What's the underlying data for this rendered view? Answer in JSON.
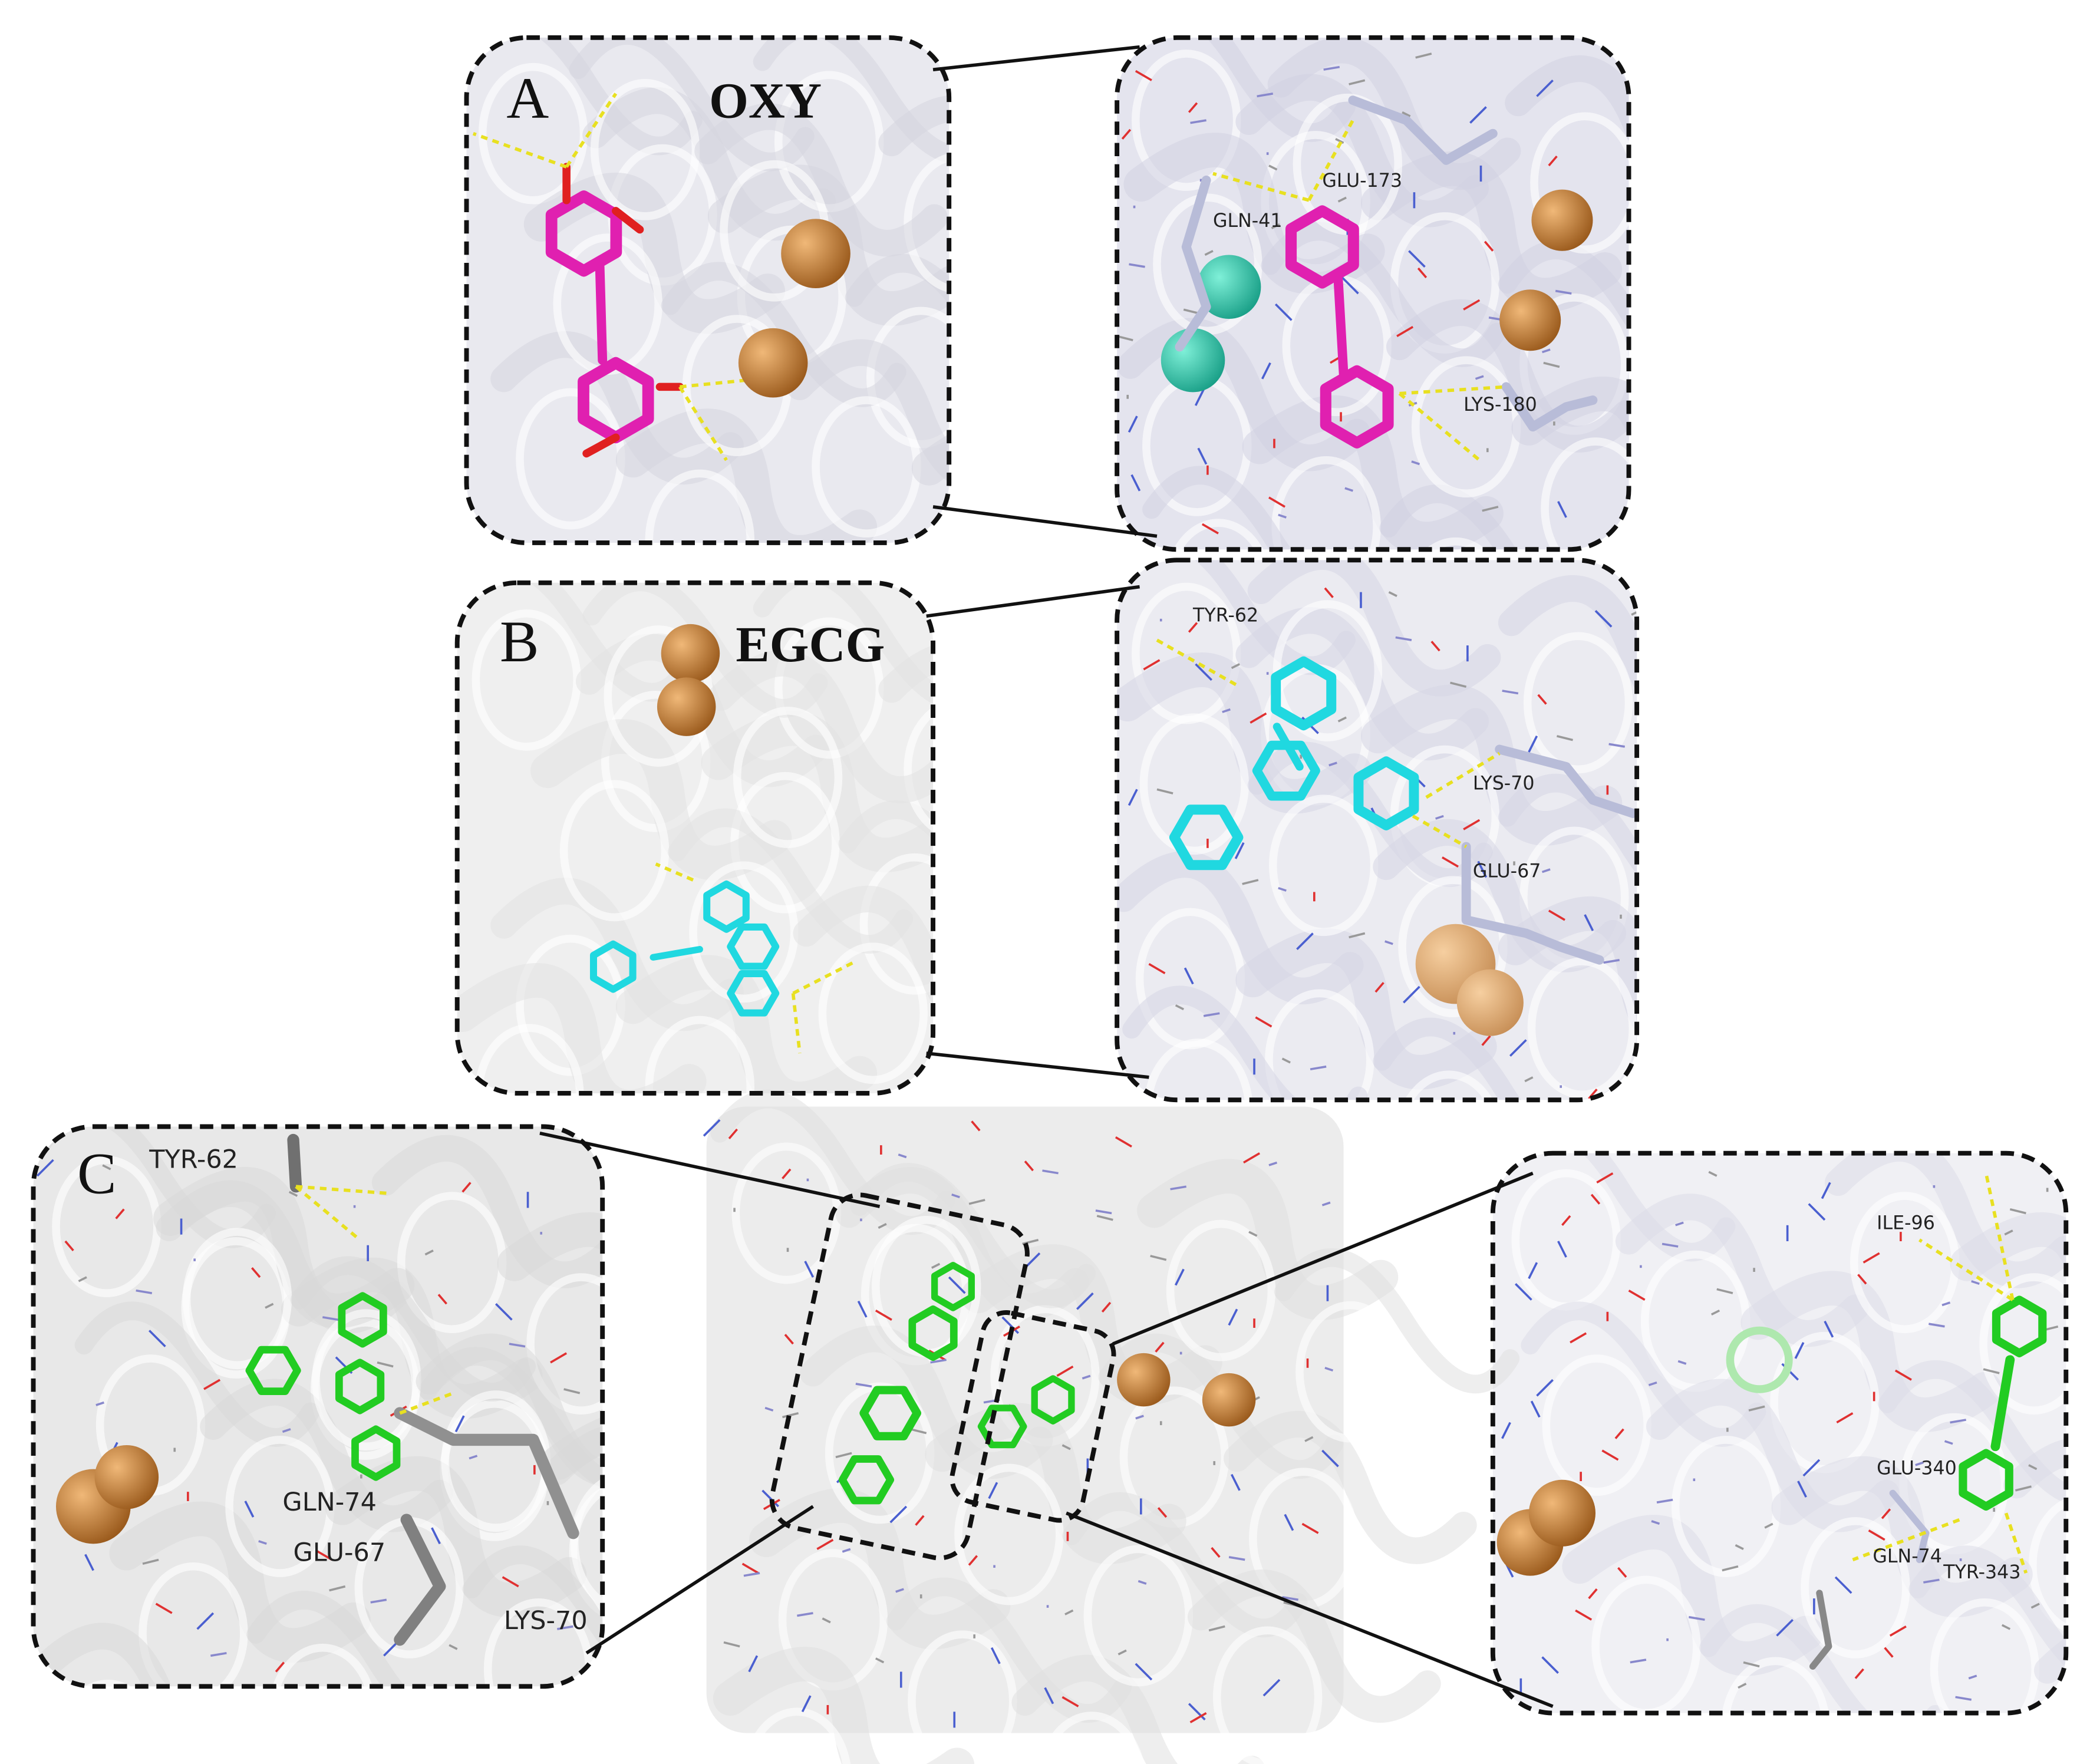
{
  "panels": [
    {
      "label": "A",
      "ligand": "OXY",
      "residues": [
        "GLN-41",
        "GLU-173",
        "LYS-180"
      ]
    },
    {
      "label": "B",
      "ligand": "EGCG",
      "residues": [
        "TYR-62",
        "LYS-70",
        "GLU-67"
      ]
    },
    {
      "label": "C",
      "residues_left": [
        "TYR-62",
        "GLN-74",
        "GLU-67",
        "LYS-70"
      ],
      "residues_right": [
        "ILE-96",
        "GLU-340",
        "GLN-74",
        "TYR-343"
      ]
    }
  ]
}
